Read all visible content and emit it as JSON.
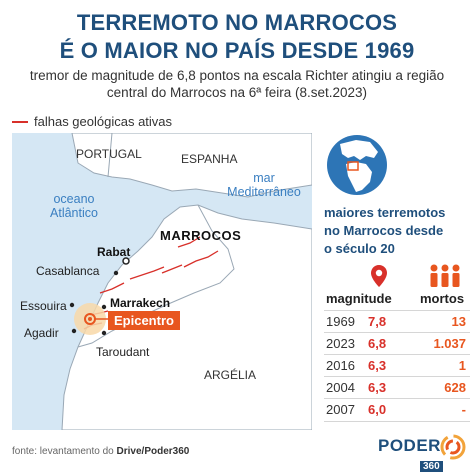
{
  "header": {
    "title_line1": "TERREMOTO NO MARROCOS",
    "title_line2": "É O MAIOR NO PAÍS DESDE 1969",
    "subtitle_line1": "tremor de magnitude de 6,8 pontos na escala Richter atingiu a região",
    "subtitle_line2": "central do Marrocos na 6ª feira (8.set.2023)"
  },
  "legend": {
    "label": "falhas geológicas ativas",
    "color": "#d8302a"
  },
  "map": {
    "countries": {
      "portugal": "PORTUGAL",
      "spain": "ESPANHA",
      "morocco": "MARROCOS",
      "algeria": "ARGÉLIA"
    },
    "seas": {
      "atlantic_line1": "oceano",
      "atlantic_line2": "Atlântico",
      "med_line1": "mar",
      "med_line2": "Mediterrâneo"
    },
    "cities": {
      "rabat": "Rabat",
      "casablanca": "Casablanca",
      "essaouira": "Essouira",
      "marrakech": "Marrakech",
      "agadir": "Agadir",
      "taroudant": "Taroudant"
    },
    "epicenter_label": "Epicentro",
    "colors": {
      "sea": "#d5e7f4",
      "land": "#ffffff",
      "morocco": "#ffffff",
      "border": "#9aa8b5",
      "epicenter": "#e8561f",
      "halo": "#f8d8a8"
    }
  },
  "sidebar": {
    "heading_line1": "maiores terremotos",
    "heading_line2": "no Marrocos desde",
    "heading_line3": "o século 20",
    "icons": {
      "magnitude": "location-pin-icon",
      "deaths": "people-icon"
    },
    "columns": {
      "magnitude": "magnitude",
      "deaths": "mortos"
    },
    "rows": [
      {
        "year": "1969",
        "magnitude": "7,8",
        "deaths": "13"
      },
      {
        "year": "2023",
        "magnitude": "6,8",
        "deaths": "1.037"
      },
      {
        "year": "2016",
        "magnitude": "6,3",
        "deaths": "1"
      },
      {
        "year": "2004",
        "magnitude": "6,3",
        "deaths": "628"
      },
      {
        "year": "2007",
        "magnitude": "6,0",
        "deaths": "-"
      }
    ]
  },
  "footer": {
    "source_prefix": "fonte: levantamento do ",
    "source_bold": "Drive/Poder360",
    "logo_main": "PODER",
    "logo_sub": "360"
  }
}
